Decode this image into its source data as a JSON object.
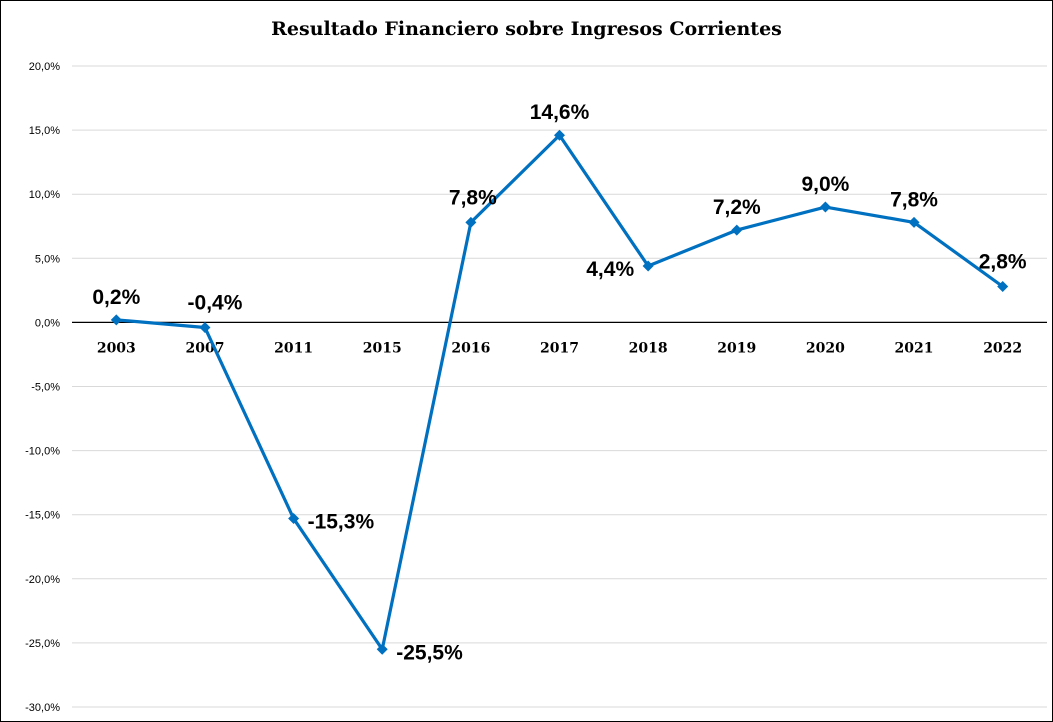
{
  "chart_data": {
    "type": "line",
    "title": "Resultado Financiero sobre Ingresos Corrientes",
    "xlabel": "",
    "ylabel": "",
    "categories": [
      "2003",
      "2007",
      "2011",
      "2015",
      "2016",
      "2017",
      "2018",
      "2019",
      "2020",
      "2021",
      "2022"
    ],
    "values": [
      0.2,
      -0.4,
      -15.3,
      -25.5,
      7.8,
      14.6,
      4.4,
      7.2,
      9.0,
      7.8,
      2.8
    ],
    "data_labels": [
      "0,2%",
      "-0,4%",
      "-15,3%",
      "-25,5%",
      "7,8%",
      "14,6%",
      "4,4%",
      "7,2%",
      "9,0%",
      "7,8%",
      "2,8%"
    ],
    "y_ticks": [
      "20,0%",
      "15,0%",
      "10,0%",
      "5,0%",
      "0,0%",
      "-5,0%",
      "-10,0%",
      "-15,0%",
      "-20,0%",
      "-25,0%",
      "-30,0%"
    ],
    "ylim": [
      -30,
      20
    ],
    "grid": true,
    "legend": "none",
    "line_color": "#0070C0"
  }
}
